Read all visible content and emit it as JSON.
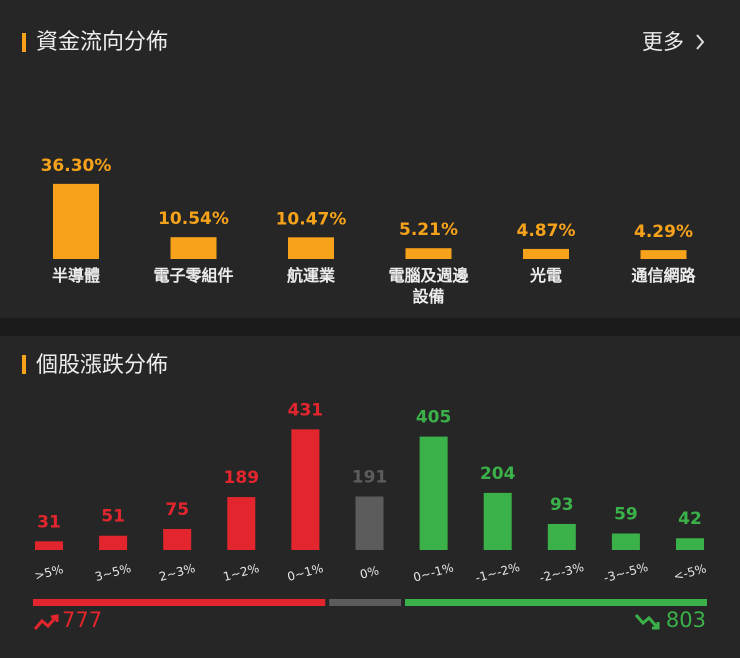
{
  "chart_data": [
    {
      "type": "bar",
      "title": "資金流向分佈",
      "more": "更多",
      "categories": [
        "半導體",
        "電子零組件",
        "航運業",
        "電腦及週邊設備",
        "光電",
        "通信網路"
      ],
      "values": [
        36.3,
        10.54,
        10.47,
        5.21,
        4.87,
        4.29
      ],
      "value_labels": [
        "36.30%",
        "10.54%",
        "10.47%",
        "5.21%",
        "4.87%",
        "4.29%"
      ],
      "color": "#f6a21b"
    },
    {
      "type": "bar",
      "title": "個股漲跌分佈",
      "categories": [
        ">5%",
        "3~5%",
        "2~3%",
        "1~2%",
        "0~1%",
        "0%",
        "0~-1%",
        "-1~-2%",
        "-2~-3%",
        "-3~-5%",
        "<-5%"
      ],
      "values": [
        31,
        51,
        75,
        189,
        431,
        191,
        405,
        204,
        93,
        59,
        42
      ],
      "colors": [
        "#e3262e",
        "#e3262e",
        "#e3262e",
        "#e3262e",
        "#e3262e",
        "#5c5c5c",
        "#3bb149",
        "#3bb149",
        "#3bb149",
        "#3bb149",
        "#3bb149"
      ],
      "up_total": 777,
      "down_total": 803
    }
  ]
}
